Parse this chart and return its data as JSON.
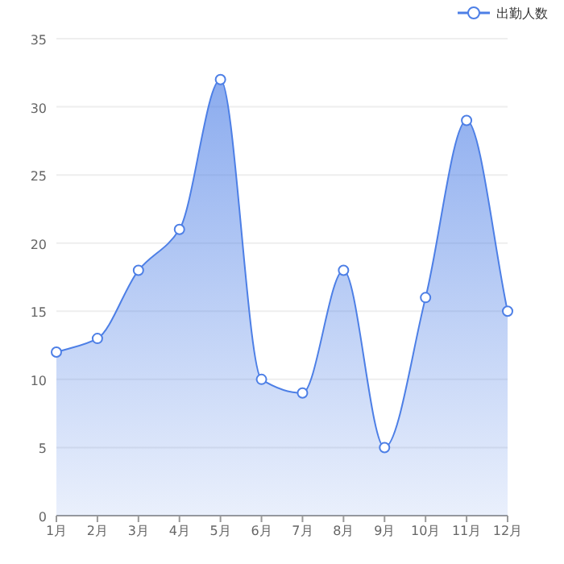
{
  "chart_data": {
    "type": "area",
    "categories": [
      "1月",
      "2月",
      "3月",
      "4月",
      "5月",
      "6月",
      "7月",
      "8月",
      "9月",
      "10月",
      "11月",
      "12月"
    ],
    "series": [
      {
        "name": "出勤人数",
        "color": "#4d7fe6",
        "values": [
          12,
          13,
          18,
          21,
          32,
          10,
          9,
          18,
          5,
          16,
          29,
          15
        ]
      }
    ],
    "ylim": [
      0,
      35
    ],
    "yticks": [
      0,
      5,
      10,
      15,
      20,
      25,
      30,
      35
    ],
    "grid": "y",
    "legend": "top right",
    "marker": "circle"
  }
}
